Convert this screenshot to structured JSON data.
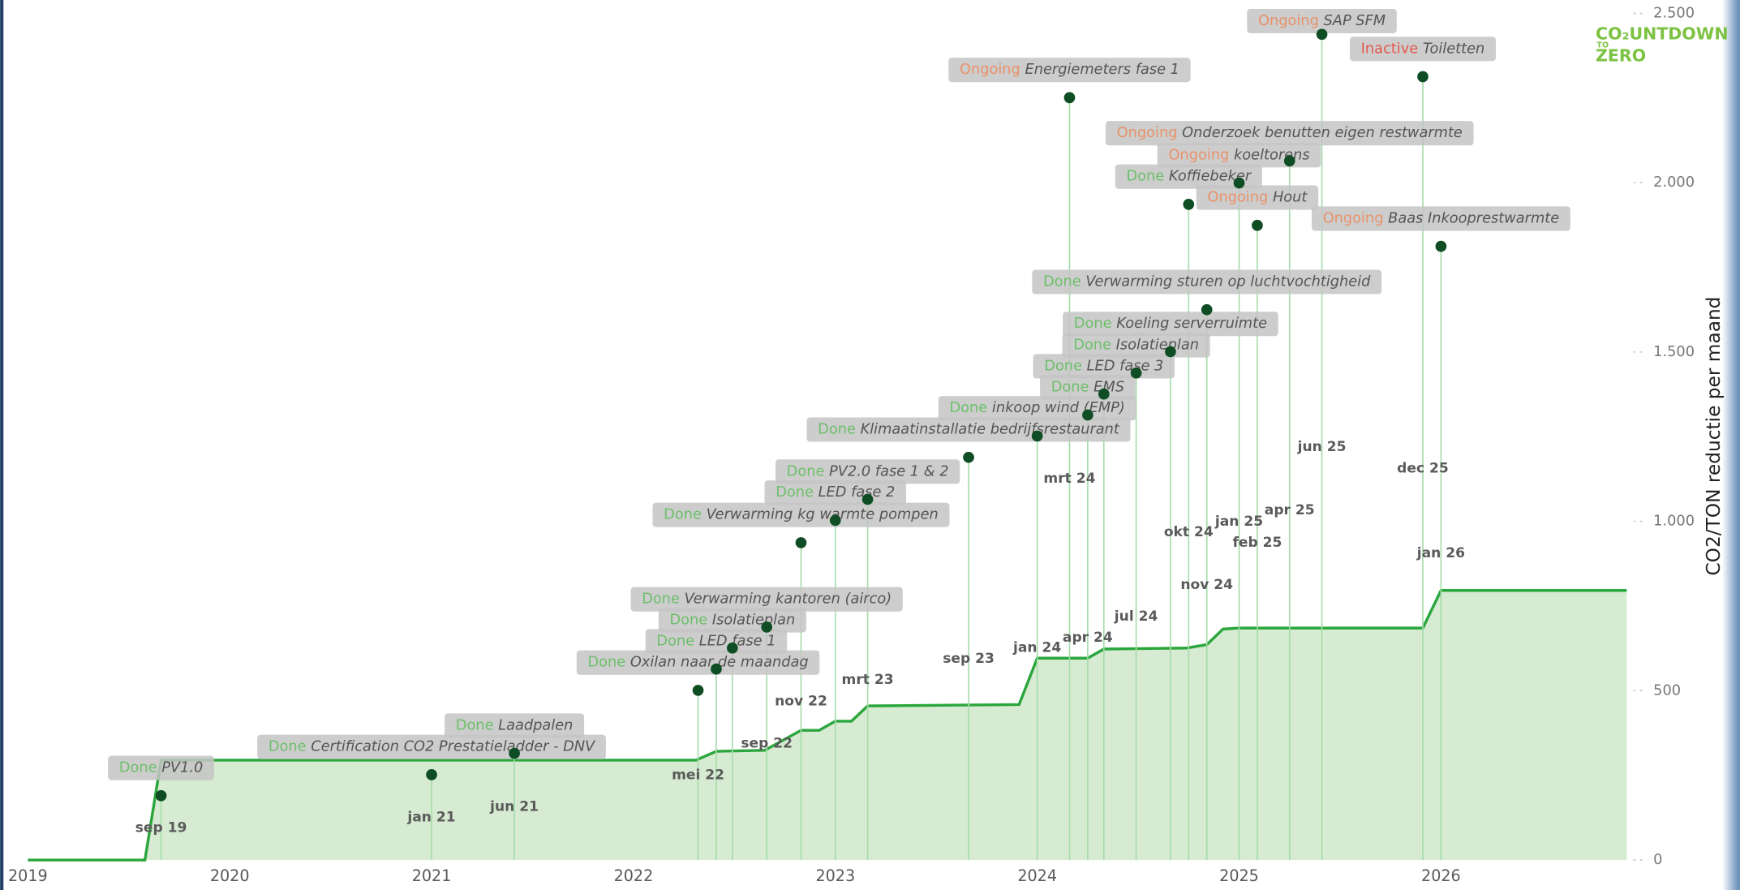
{
  "chart_data": {
    "type": "timeline",
    "y_axis_title": "CO2/TON reductie per maand",
    "logo": [
      "CO₂UNTDOWN",
      "TO",
      "ZERO"
    ],
    "xlim": [
      2019,
      2026.92
    ],
    "xticks": [
      2019,
      2020,
      2021,
      2022,
      2023,
      2024,
      2025,
      2026
    ],
    "ylim": [
      0,
      2500
    ],
    "yticks": [
      0,
      500,
      {
        "value": 1000,
        "label": "1.000"
      },
      {
        "value": 1500,
        "label": "1.500"
      },
      {
        "value": 2000,
        "label": "2.000"
      },
      {
        "value": 2500,
        "label": "2.500"
      }
    ],
    "color": "#2aa63c",
    "area_color": "#d6ebd2",
    "stem_color": "#a6dcaa",
    "dot_color": "#0f4d24",
    "status_colors": {
      "Done": "#6dbf6b",
      "Ongoing": "#e8926a",
      "Inactive": "#e3574a"
    },
    "x": [
      2019.0,
      2019.58,
      2019.66,
      2022.31,
      2022.41,
      2022.65,
      2022.83,
      2022.92,
      2023.0,
      2023.08,
      2023.16,
      2023.91,
      2024.0,
      2024.25,
      2024.33,
      2024.74,
      2024.84,
      2024.92,
      2025.0,
      2025.91,
      2026.0,
      2026.92
    ],
    "values": [
      0,
      0,
      295,
      295,
      321,
      324,
      383,
      383,
      410,
      410,
      455,
      459,
      596,
      596,
      623,
      626,
      636,
      682,
      685,
      685,
      796,
      796
    ],
    "milestones": [
      {
        "status": "Done",
        "name": "PV1.0",
        "date": "sep 19",
        "x": 2019.66,
        "value": 190
      },
      {
        "status": "Done",
        "name": "Certification CO2 Prestatieladder - DNV",
        "date": "jan 21",
        "x": 2021.0,
        "value": 252
      },
      {
        "status": "Done",
        "name": "Laadpalen",
        "date": "jun 21",
        "x": 2021.41,
        "value": 315
      },
      {
        "status": "Done",
        "name": "Oxilan naar de maandag",
        "date": "mei 22",
        "x": 2022.32,
        "value": 501
      },
      {
        "status": "Done",
        "name": "LED fase 1",
        "date": null,
        "x": 2022.41,
        "value": 564
      },
      {
        "status": "Done",
        "name": "Isolatieplan",
        "date": null,
        "x": 2022.49,
        "value": 626
      },
      {
        "status": "Done",
        "name": "Verwarming kantoren (airco)",
        "date": "sep 22",
        "x": 2022.66,
        "value": 688
      },
      {
        "status": "Done",
        "name": "Verwarming kg warmte pompen",
        "date": "nov 22",
        "x": 2022.83,
        "value": 937
      },
      {
        "status": "Done",
        "name": "LED fase 2",
        "date": null,
        "x": 2023.0,
        "value": 1003
      },
      {
        "status": "Done",
        "name": "PV2.0 fase 1 & 2",
        "date": "mrt 23",
        "x": 2023.16,
        "value": 1065
      },
      {
        "status": "Done",
        "name": "Klimaatinstallatie bedrijfsrestaurant",
        "date": "sep 23",
        "x": 2023.66,
        "value": 1189
      },
      {
        "status": "Done",
        "name": "inkoop wind (EMP)",
        "date": "jan 24",
        "x": 2024.0,
        "value": 1252
      },
      {
        "status": "Ongoing",
        "name": "Energiemeters fase 1",
        "date": "mrt 24",
        "x": 2024.16,
        "value": 2251
      },
      {
        "status": "Done",
        "name": "EMS",
        "date": "apr 24",
        "x": 2024.25,
        "value": 1314
      },
      {
        "status": "Done",
        "name": "LED fase 3",
        "date": null,
        "x": 2024.33,
        "value": 1376
      },
      {
        "status": "Done",
        "name": "Isolatieplan",
        "date": "jul 24",
        "x": 2024.49,
        "value": 1438
      },
      {
        "status": "Done",
        "name": "Koeling serverruimte",
        "date": null,
        "x": 2024.66,
        "value": 1501
      },
      {
        "status": "Done",
        "name": "Verwarming sturen op luchtvochtigheid",
        "date": "nov 24",
        "x": 2024.84,
        "value": 1625
      },
      {
        "status": "Done",
        "name": "Koffiebeker",
        "date": "okt 24",
        "x": 2024.75,
        "value": 1936
      },
      {
        "status": "Ongoing",
        "name": "Onderzoek benutten eigen restwarmte",
        "date": "apr 25",
        "x": 2025.25,
        "value": 2064
      },
      {
        "status": "Ongoing",
        "name": "koeltorens",
        "date": "jan 25",
        "x": 2025.0,
        "value": 1999
      },
      {
        "status": "Ongoing",
        "name": "Hout",
        "date": "feb 25",
        "x": 2025.09,
        "value": 1874
      },
      {
        "status": "Ongoing",
        "name": "SAP SFM",
        "date": "jun 25",
        "x": 2025.41,
        "value": 2438
      },
      {
        "status": "Inactive",
        "name": "Toiletten",
        "date": "dec 25",
        "x": 2025.91,
        "value": 2313
      },
      {
        "status": "Ongoing",
        "name": "Baas Inkooprestwarmte",
        "date": "jan 26",
        "x": 2026.0,
        "value": 1812
      }
    ]
  }
}
